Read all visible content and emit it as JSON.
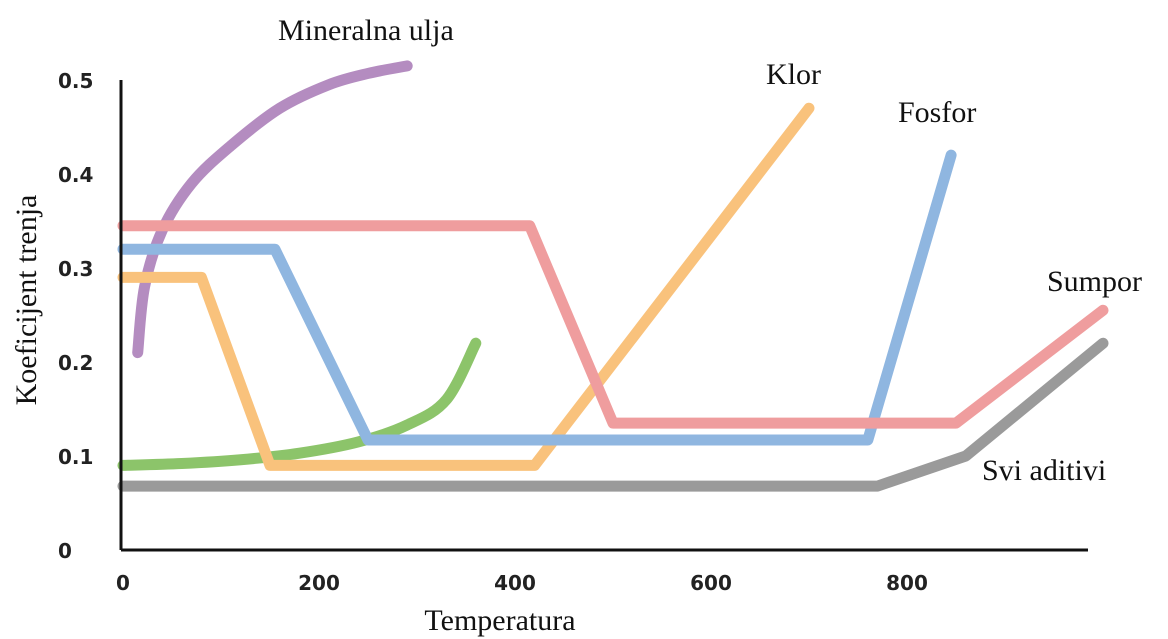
{
  "chart_data": {
    "type": "line",
    "xlabel": "Temperatura",
    "ylabel": "Koeficijent trenja",
    "xlim": [
      0,
      1000
    ],
    "ylim": [
      0,
      0.5
    ],
    "x_ticks": [
      "0",
      "200",
      "400",
      "600",
      "800"
    ],
    "y_ticks": [
      "0",
      "0.1",
      "0.2",
      "0.3",
      "0.4",
      "0.5"
    ],
    "grid": false,
    "series": [
      {
        "name": "Mineralna ulja",
        "color": "#b48cc0",
        "curve": true,
        "x": [
          15,
          22,
          40,
          70,
          110,
          160,
          210,
          250,
          290
        ],
        "y": [
          0.21,
          0.28,
          0.34,
          0.39,
          0.43,
          0.47,
          0.495,
          0.507,
          0.515
        ]
      },
      {
        "name": "",
        "color": "#8cc46a",
        "curve": true,
        "x": [
          0,
          60,
          120,
          180,
          240,
          290,
          330,
          360
        ],
        "y": [
          0.09,
          0.092,
          0.096,
          0.103,
          0.115,
          0.133,
          0.16,
          0.22
        ]
      },
      {
        "name": "Klor",
        "color": "#f9c27c",
        "x": [
          0,
          80,
          150,
          420,
          700
        ],
        "y": [
          0.29,
          0.29,
          0.09,
          0.09,
          0.47
        ]
      },
      {
        "name": "Fosfor",
        "color": "#8fb6e0",
        "x": [
          0,
          155,
          250,
          760,
          845
        ],
        "y": [
          0.32,
          0.32,
          0.117,
          0.117,
          0.42
        ]
      },
      {
        "name": "Sumpor",
        "color": "#ef9d9e",
        "x": [
          0,
          415,
          500,
          850,
          1000
        ],
        "y": [
          0.345,
          0.345,
          0.135,
          0.135,
          0.255
        ]
      },
      {
        "name": "Svi aditivi",
        "color": "#9a9a9a",
        "x": [
          0,
          770,
          860,
          1000
        ],
        "y": [
          0.068,
          0.068,
          0.1,
          0.22
        ]
      }
    ]
  }
}
